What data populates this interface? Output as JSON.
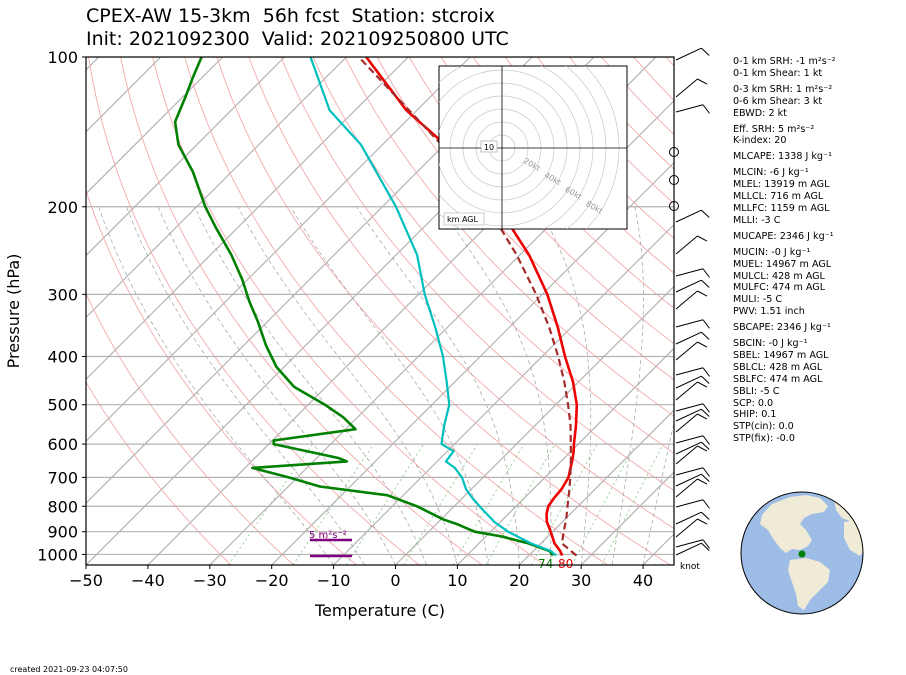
{
  "header": {
    "title_line1": "CPEX-AW 15-3km  56h fcst  Station: stcroix",
    "title_line2": "Init: 2021092300  Valid: 202109250800 UTC"
  },
  "indices": [
    {
      "text": "0-1 km SRH: -1 m²s⁻²",
      "gap": false
    },
    {
      "text": "0-1 km Shear: 1 kt",
      "gap": false
    },
    {
      "text": "0-3 km SRH: 1 m²s⁻²",
      "gap": true
    },
    {
      "text": "0-6 km Shear: 3 kt",
      "gap": false
    },
    {
      "text": "EBWD: 2 kt",
      "gap": false
    },
    {
      "text": "Eff. SRH: 5 m²s⁻²",
      "gap": true
    },
    {
      "text": "K-index: 20",
      "gap": false
    },
    {
      "text": "MLCAPE: 1338 J kg⁻¹",
      "gap": true
    },
    {
      "text": "MLCIN: -6 J kg⁻¹",
      "gap": true
    },
    {
      "text": "MLEL: 13919 m AGL",
      "gap": false
    },
    {
      "text": "MLLCL: 716 m AGL",
      "gap": false
    },
    {
      "text": "MLLFC: 1159 m AGL",
      "gap": false
    },
    {
      "text": "MLLI: -3 C",
      "gap": false
    },
    {
      "text": "MUCAPE: 2346 J kg⁻¹",
      "gap": true
    },
    {
      "text": "MUCIN: -0 J kg⁻¹",
      "gap": true
    },
    {
      "text": "MUEL: 14967 m AGL",
      "gap": false
    },
    {
      "text": "MULCL: 428 m AGL",
      "gap": false
    },
    {
      "text": "MULFC: 474 m AGL",
      "gap": false
    },
    {
      "text": "MULI: -5 C",
      "gap": false
    },
    {
      "text": "PWV: 1.51 inch",
      "gap": false
    },
    {
      "text": "SBCAPE: 2346 J kg⁻¹",
      "gap": true
    },
    {
      "text": "SBCIN: -0 J kg⁻¹",
      "gap": true
    },
    {
      "text": "SBEL: 14967 m AGL",
      "gap": false
    },
    {
      "text": "SBLCL: 428 m AGL",
      "gap": false
    },
    {
      "text": "SBLFC: 474 m AGL",
      "gap": false
    },
    {
      "text": "SBLI: -5 C",
      "gap": false
    },
    {
      "text": "SCP: 0.0",
      "gap": false
    },
    {
      "text": "SHIP: 0.1",
      "gap": false
    },
    {
      "text": "STP(cin): 0.0",
      "gap": false
    },
    {
      "text": "STP(fix): -0.0",
      "gap": false
    }
  ],
  "created": "created 2021-09-23 04:07:50",
  "chart_data": {
    "type": "line",
    "subtype": "skew-t log-p",
    "xlabel": "Temperature (C)",
    "ylabel": "Pressure (hPa)",
    "xlim": [
      -50,
      45
    ],
    "ylim": [
      1050,
      100
    ],
    "x_ticks": [
      -50,
      -40,
      -30,
      -20,
      -10,
      0,
      10,
      20,
      30,
      40
    ],
    "y_ticks": [
      100,
      200,
      300,
      400,
      500,
      600,
      700,
      800,
      900,
      1000
    ],
    "yscale": "log",
    "grid": true,
    "series": [
      {
        "role": "temperature",
        "color": "#ee0000",
        "p": [
          1005,
          985,
          950,
          900,
          860,
          830,
          800,
          770,
          740,
          700,
          670,
          650,
          620,
          600,
          550,
          500,
          450,
          400,
          350,
          300,
          250,
          200,
          150,
          128,
          100
        ],
        "t": [
          25.4,
          24.4,
          22.2,
          19.7,
          17.5,
          16.2,
          15.2,
          14.8,
          14.6,
          13.8,
          12.6,
          11.8,
          10.4,
          9.3,
          6.6,
          3.4,
          -0.9,
          -6.3,
          -12.1,
          -19.2,
          -28.5,
          -41.3,
          -59.9,
          -71.7,
          -86.8
        ]
      },
      {
        "role": "dewpoint",
        "color": "#00bfbf",
        "p": [
          1005,
          985,
          950,
          900,
          860,
          830,
          800,
          770,
          740,
          700,
          670,
          650,
          620,
          600,
          550,
          500,
          450,
          400,
          350,
          300,
          250,
          200,
          150,
          128,
          100
        ],
        "t": [
          24.4,
          22.9,
          18.4,
          12.8,
          9.0,
          6.6,
          4.1,
          1.6,
          -0.8,
          -3.4,
          -6.1,
          -8.6,
          -9.0,
          -12.1,
          -14.7,
          -17.2,
          -21.3,
          -26.0,
          -31.9,
          -39.0,
          -46.6,
          -57.8,
          -73.5,
          -84.1,
          -95.8
        ]
      },
      {
        "role": "parcel",
        "color": "#a52a2a",
        "p": [
          1005,
          950,
          900,
          850,
          800,
          750,
          700,
          650,
          600,
          550,
          500,
          450,
          400,
          350,
          300,
          250,
          200,
          150,
          100
        ],
        "t": [
          27.7,
          23.4,
          21.8,
          20.2,
          18.3,
          16.3,
          14.1,
          11.6,
          8.8,
          5.7,
          2.0,
          -2.3,
          -7.4,
          -13.5,
          -21.0,
          -30.5,
          -43.0,
          -60.5,
          -88.0
        ]
      },
      {
        "role": "wetbulb",
        "color": "#008000",
        "p": [
          1005,
          985,
          950,
          920,
          900,
          870,
          850,
          800,
          760,
          730,
          700,
          670,
          650,
          640,
          600,
          590,
          560,
          530,
          500,
          460,
          420,
          380,
          340,
          310,
          280,
          250,
          220,
          200,
          170,
          150,
          135,
          120,
          110,
          100
        ],
        "t": [
          23.9,
          22.7,
          18.0,
          12.5,
          7.4,
          3.5,
          0.3,
          -6.0,
          -12.6,
          -24.9,
          -31.4,
          -38.8,
          -24.6,
          -26.5,
          -39.2,
          -39.8,
          -28.4,
          -32.3,
          -37.3,
          -45.2,
          -51.2,
          -56.4,
          -61.6,
          -66.2,
          -70.9,
          -76.6,
          -83.6,
          -88.6,
          -96.3,
          -103.0,
          -107.2,
          -109.6,
          -111.5,
          -113.4
        ]
      }
    ],
    "surface_labels": [
      {
        "text": "74",
        "color": "#008000"
      },
      {
        "text": "80",
        "color": "#ee0000"
      }
    ],
    "hodograph": {
      "ring_labels": [
        "20kt",
        "40kt",
        "60kt",
        "80kt"
      ],
      "label_10": "10",
      "corner_label": "km AGL"
    },
    "srh_bar_label": "5 m²s⁻²",
    "barb_unit_label": "knot"
  },
  "globe": {
    "ocean_color": "#9ebde6",
    "land_color": "#f0ebd6",
    "station_marker_color": "#008000"
  }
}
